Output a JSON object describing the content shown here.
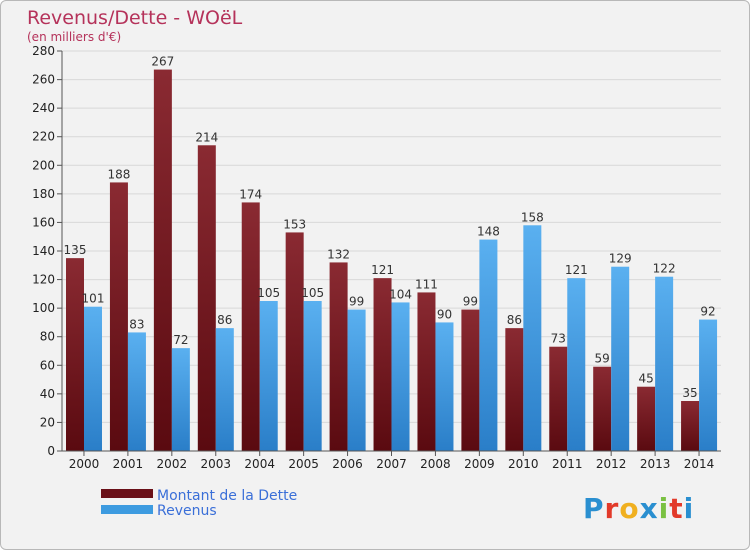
{
  "chart_data": {
    "type": "bar",
    "title": "Revenus/Dette - WOëL",
    "subtitle": "(en milliers d'€)",
    "categories": [
      "2000",
      "2001",
      "2002",
      "2003",
      "2004",
      "2005",
      "2006",
      "2007",
      "2008",
      "2009",
      "2010",
      "2011",
      "2012",
      "2013",
      "2014"
    ],
    "series": [
      {
        "name": "Montant de la Dette",
        "color": "#7a1a24",
        "values": [
          135,
          188,
          267,
          214,
          174,
          153,
          132,
          121,
          111,
          99,
          86,
          73,
          59,
          45,
          35
        ]
      },
      {
        "name": "Revenus",
        "color": "#3d9be0",
        "values": [
          101,
          83,
          72,
          86,
          105,
          105,
          99,
          104,
          90,
          148,
          158,
          121,
          129,
          122,
          92
        ]
      }
    ],
    "ylim": [
      0,
      280
    ],
    "yticks": [
      0,
      20,
      40,
      60,
      80,
      100,
      120,
      140,
      160,
      180,
      200,
      220,
      240,
      260,
      280
    ],
    "grid": true,
    "legend_position": "bottom-left"
  },
  "branding": {
    "logo_letters": [
      "P",
      "r",
      "o",
      "x",
      "i",
      "t",
      "i"
    ],
    "logo_colors": [
      "#2a8fd0",
      "#e23a2a",
      "#f0b020",
      "#2a8fd0",
      "#7ac142",
      "#e23a2a",
      "#2a8fd0"
    ]
  }
}
